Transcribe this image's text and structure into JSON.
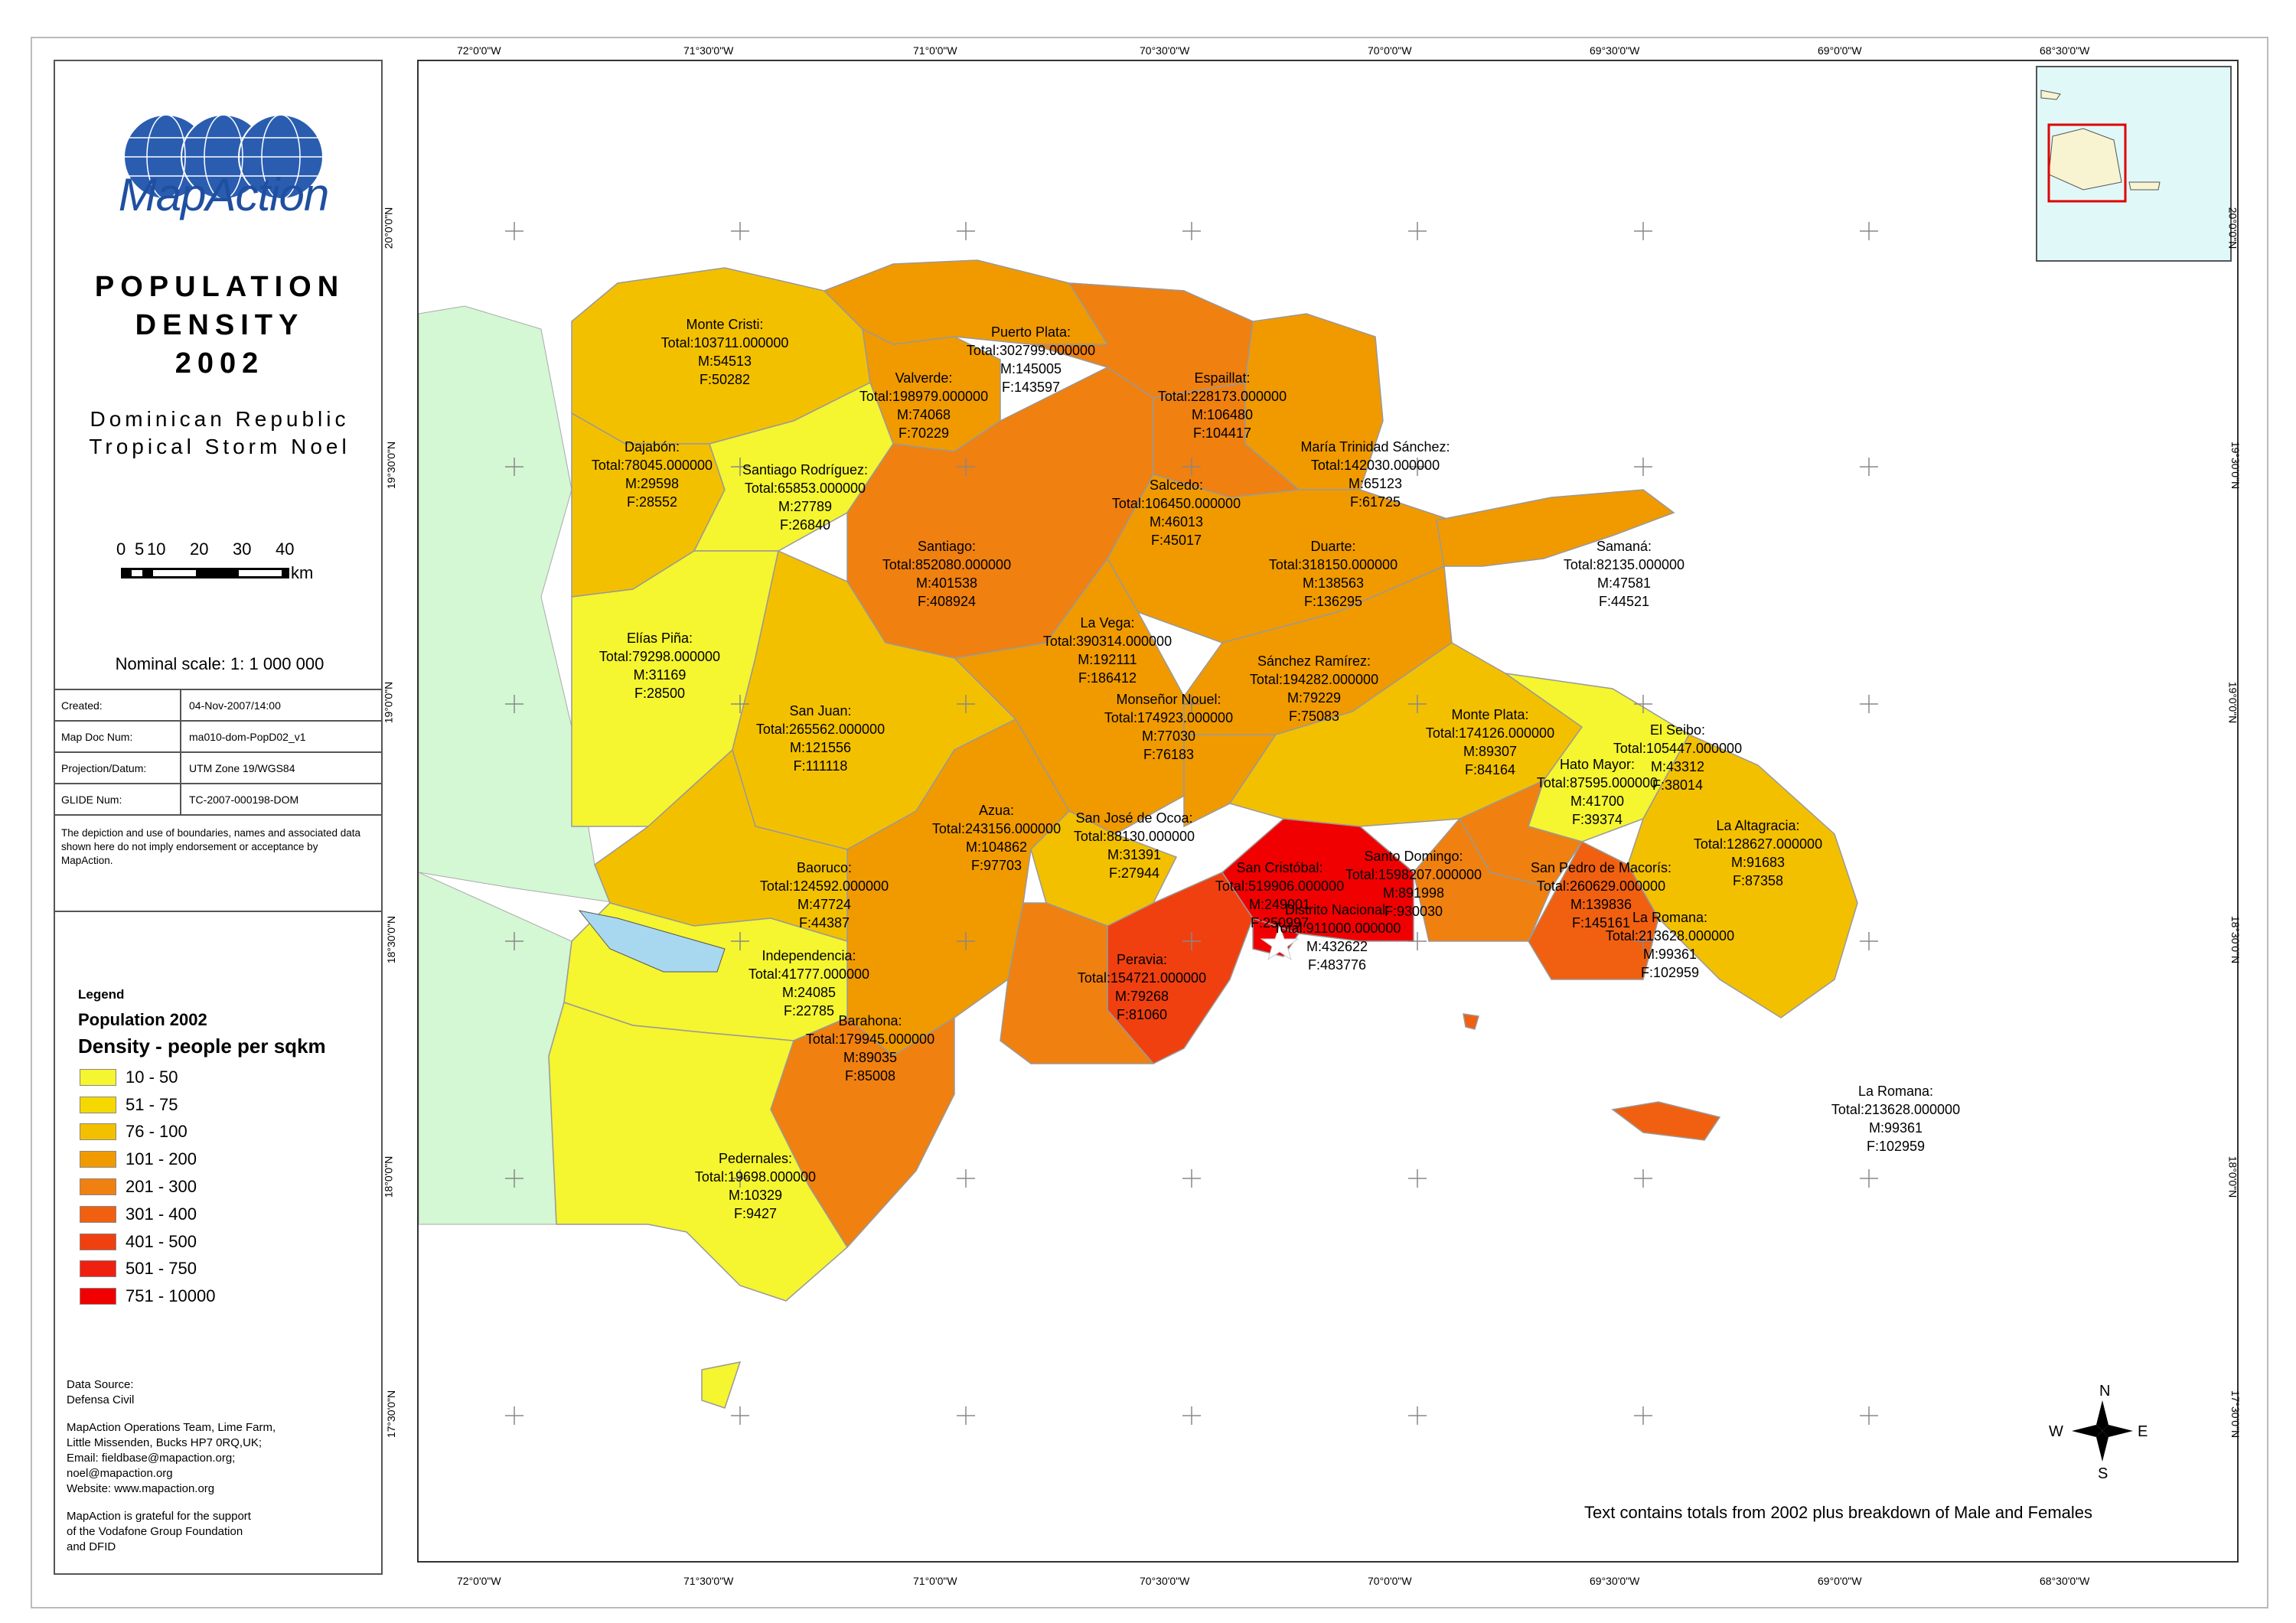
{
  "logo": {
    "text": "MapAction"
  },
  "title": {
    "lines": [
      "POPULATION",
      "DENSITY",
      "2002"
    ]
  },
  "subtitle": {
    "lines": [
      "Dominican Republic",
      "Tropical Storm Noel"
    ]
  },
  "scalebar": {
    "labels": [
      "0",
      "5",
      "10",
      "20",
      "30",
      "40"
    ],
    "unit": "km"
  },
  "nominal_scale": "Nominal scale: 1: 1 000 000",
  "meta": [
    {
      "key": "Created:",
      "value": "04-Nov-2007/14:00"
    },
    {
      "key": "Map Doc Num:",
      "value": "ma010-dom-PopD02_v1"
    },
    {
      "key": "Projection/Datum:",
      "value": "UTM Zone 19/WGS84"
    },
    {
      "key": "GLIDE Num:",
      "value": "TC-2007-000198-DOM"
    }
  ],
  "disclaimer": "The depiction and use of boundaries, names and associated data shown here do not imply endorsement or acceptance by MapAction.",
  "legend": {
    "title": "Legend",
    "subtitle": "Population 2002",
    "subtitle2": "Density - people per sqkm",
    "items": [
      {
        "label": "10 - 50",
        "color": "#f5f530"
      },
      {
        "label": "51 - 75",
        "color": "#f5d800"
      },
      {
        "label": "76 - 100",
        "color": "#f3c000"
      },
      {
        "label": "101 - 200",
        "color": "#f09a00"
      },
      {
        "label": "201 - 300",
        "color": "#f08010"
      },
      {
        "label": "301 - 400",
        "color": "#f06010"
      },
      {
        "label": "401 - 500",
        "color": "#f04010"
      },
      {
        "label": "501 - 750",
        "color": "#f02010"
      },
      {
        "label": "751 - 10000",
        "color": "#f00000"
      }
    ]
  },
  "source": {
    "lines1": [
      "Data Source:",
      "Defensa Civil"
    ],
    "lines2": [
      "MapAction Operations Team, Lime Farm,",
      "Little Missenden, Bucks HP7 0RQ,UK;",
      "Email: fieldbase@mapaction.org;",
      "noel@mapaction.org",
      "Website: www.mapaction.org"
    ],
    "lines3": [
      "MapAction is grateful for the support",
      "of the Vodafone Group Foundation",
      "and DFID"
    ]
  },
  "map": {
    "note": "Text contains totals from 2002 plus breakdown of Male and Females",
    "longitudes": [
      "72°0'0\"W",
      "71°30'0\"W",
      "71°0'0\"W",
      "70°30'0\"W",
      "70°0'0\"W",
      "69°30'0\"W",
      "69°0'0\"W",
      "68°30'0\"W"
    ],
    "latitudes": [
      "20°0'0\"N",
      "19°30'0\"N",
      "19°0'0\"N",
      "18°30'0\"N",
      "18°0'0\"N",
      "17°30'0\"N"
    ],
    "compass": [
      "N",
      "E",
      "S",
      "W"
    ],
    "provinces": [
      {
        "name": "Monte Cristi:",
        "total": "Total:103711.000000",
        "m": "M:54513",
        "f": "F:50282"
      },
      {
        "name": "Puerto Plata:",
        "total": "Total:302799.000000",
        "m": "M:145005",
        "f": "F:143597"
      },
      {
        "name": "Espaillat:",
        "total": "Total:228173.000000",
        "m": "M:106480",
        "f": "F:104417"
      },
      {
        "name": "Valverde:",
        "total": "Total:198979.000000",
        "m": "M:74068",
        "f": "F:70229"
      },
      {
        "name": "María Trinidad Sánchez:",
        "total": "Total:142030.000000",
        "m": "M:65123",
        "f": "F:61725"
      },
      {
        "name": "Dajabón:",
        "total": "Total:78045.000000",
        "m": "M:29598",
        "f": "F:28552"
      },
      {
        "name": "Santiago Rodríguez:",
        "total": "Total:65853.000000",
        "m": "M:27789",
        "f": "F:26840"
      },
      {
        "name": "Salcedo:",
        "total": "Total:106450.000000",
        "m": "M:46013",
        "f": "F:45017"
      },
      {
        "name": "Santiago:",
        "total": "Total:852080.000000",
        "m": "M:401538",
        "f": "F:408924"
      },
      {
        "name": "Duarte:",
        "total": "Total:318150.000000",
        "m": "M:138563",
        "f": "F:136295"
      },
      {
        "name": "Samaná:",
        "total": "Total:82135.000000",
        "m": "M:47581",
        "f": "F:44521"
      },
      {
        "name": "La Vega:",
        "total": "Total:390314.000000",
        "m": "M:192111",
        "f": "F:186412"
      },
      {
        "name": "Elías Piña:",
        "total": "Total:79298.000000",
        "m": "M:31169",
        "f": "F:28500"
      },
      {
        "name": "Sánchez Ramírez:",
        "total": "Total:194282.000000",
        "m": "M:79229",
        "f": "F:75083"
      },
      {
        "name": "Monseñor Nouel:",
        "total": "Total:174923.000000",
        "m": "M:77030",
        "f": "F:76183"
      },
      {
        "name": "San Juan:",
        "total": "Total:265562.000000",
        "m": "M:121556",
        "f": "F:111118"
      },
      {
        "name": "Monte Plata:",
        "total": "Total:174126.000000",
        "m": "M:89307",
        "f": "F:84164"
      },
      {
        "name": "El Seibo:",
        "total": "Total:105447.000000",
        "m": "M:43312",
        "f": "F:38014"
      },
      {
        "name": "Hato Mayor:",
        "total": "Total:87595.000000",
        "m": "M:41700",
        "f": "F:39374"
      },
      {
        "name": "Azua:",
        "total": "Total:243156.000000",
        "m": "M:104862",
        "f": "F:97703"
      },
      {
        "name": "San José de Ocoa:",
        "total": "Total:88130.000000",
        "m": "M:31391",
        "f": "F:27944"
      },
      {
        "name": "La Altagracia:",
        "total": "Total:128627.000000",
        "m": "M:91683",
        "f": "F:87358"
      },
      {
        "name": "Santo Domingo:",
        "total": "Total:1598207.000000",
        "m": "M:891998",
        "f": "F:930030"
      },
      {
        "name": "San Cristóbal:",
        "total": "Total:519906.000000",
        "m": "M:249001",
        "f": "F:250997"
      },
      {
        "name": "Baoruco:",
        "total": "Total:124592.000000",
        "m": "M:47724",
        "f": "F:44387"
      },
      {
        "name": "San Pedro de Macorís:",
        "total": "Total:260629.000000",
        "m": "M:139836",
        "f": "F:145161"
      },
      {
        "name": "Distrito Nacional:",
        "total": "Total:911000.000000",
        "m": "M:432622",
        "f": "F:483776"
      },
      {
        "name": "La Romana:",
        "total": "Total:213628.000000",
        "m": "M:99361",
        "f": "F:102959"
      },
      {
        "name": "Independencia:",
        "total": "Total:41777.000000",
        "m": "M:24085",
        "f": "F:22785"
      },
      {
        "name": "Peravia:",
        "total": "Total:154721.000000",
        "m": "M:79268",
        "f": "F:81060"
      },
      {
        "name": "Barahona:",
        "total": "Total:179945.000000",
        "m": "M:89035",
        "f": "F:85008"
      },
      {
        "name": "Pedernales:",
        "total": "Total:19698.000000",
        "m": "M:10329",
        "f": "F:9427"
      },
      {
        "name": "La Romana:",
        "total": "Total:213628.000000",
        "m": "M:99361",
        "f": "F:102959"
      }
    ]
  }
}
